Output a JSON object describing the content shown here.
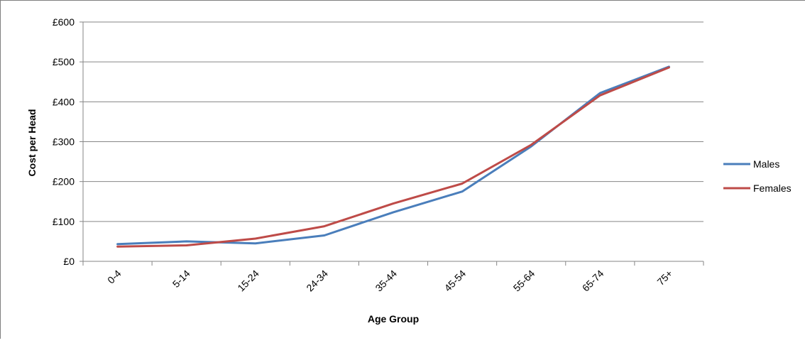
{
  "chart_data": {
    "type": "line",
    "xlabel": "Age Group",
    "ylabel": "Cost per Head",
    "categories": [
      "0-4",
      "5-14",
      "15-24",
      "24-34",
      "35-44",
      "45-54",
      "55-64",
      "65-74",
      "75+"
    ],
    "ylim": [
      0,
      600
    ],
    "yticks": [
      0,
      100,
      200,
      300,
      400,
      500,
      600
    ],
    "yticklabels": [
      "£0",
      "£100",
      "£200",
      "£300",
      "£400",
      "£500",
      "£600"
    ],
    "grid": true,
    "legend_position": "right",
    "series": [
      {
        "name": "Males",
        "color": "#4a7ebb",
        "values": [
          43,
          50,
          45,
          65,
          123,
          175,
          288,
          422,
          488
        ]
      },
      {
        "name": "Females",
        "color": "#be4b48",
        "values": [
          37,
          40,
          57,
          88,
          145,
          195,
          292,
          416,
          486
        ]
      }
    ]
  }
}
